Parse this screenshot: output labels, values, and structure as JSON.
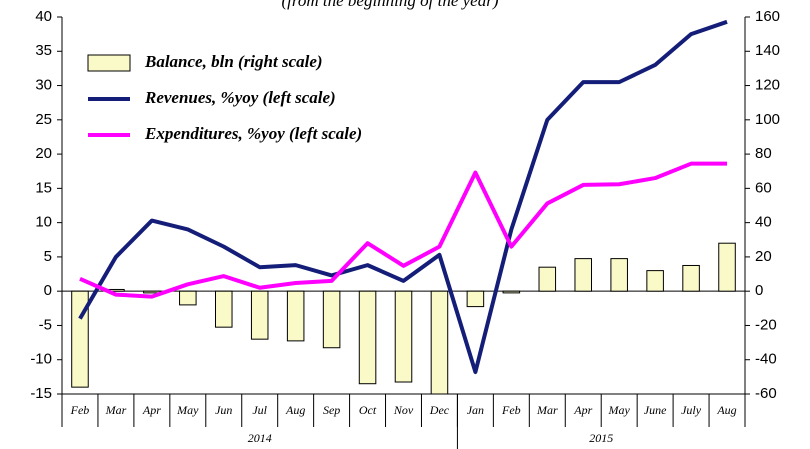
{
  "chart_data": {
    "type": "bar_line_combo",
    "subtitle": "(from the beginning of the year)",
    "categories": [
      "Feb",
      "Mar",
      "Apr",
      "May",
      "Jun",
      "Jul",
      "Aug",
      "Sep",
      "Oct",
      "Nov",
      "Dec",
      "Jan",
      "Feb",
      "Mar",
      "Apr",
      "May",
      "June",
      "July",
      "Aug"
    ],
    "groups": [
      {
        "label": "2014",
        "count": 11
      },
      {
        "label": "2015",
        "count": 8
      }
    ],
    "series": [
      {
        "name": "Balance, bln (right scale)",
        "kind": "bar",
        "axis": "y2",
        "color": "#fafac8",
        "values": [
          -56,
          1,
          -1,
          -8,
          -21,
          -28,
          -29,
          -33,
          -54,
          -53,
          -60,
          -9,
          -1,
          14,
          19,
          19,
          12,
          15,
          28
        ]
      },
      {
        "name": "Revenues, %yoy (left scale)",
        "kind": "line",
        "axis": "y",
        "color": "#141e78",
        "values": [
          -4,
          5,
          10.3,
          9,
          6.5,
          3.5,
          3.8,
          2.3,
          3.8,
          1.5,
          5.3,
          -11.8,
          9,
          25,
          30.5,
          30.5,
          33,
          37.5,
          39.3
        ]
      },
      {
        "name": "Expenditures, %yoy (left scale)",
        "kind": "line",
        "axis": "y",
        "color": "#ff00ff",
        "values": [
          1.8,
          -0.5,
          -0.8,
          1,
          2.2,
          0.5,
          1.2,
          1.5,
          7,
          3.7,
          6.5,
          17.3,
          6.5,
          12.8,
          15.5,
          15.6,
          16.5,
          18.6,
          18.6
        ]
      }
    ],
    "ylim": [
      -15,
      40
    ],
    "yticks": [
      -15,
      -10,
      -5,
      0,
      5,
      10,
      15,
      20,
      25,
      30,
      35,
      40
    ],
    "y2lim": [
      -60,
      160
    ],
    "y2ticks": [
      -60,
      -40,
      -20,
      0,
      20,
      40,
      60,
      80,
      100,
      120,
      140,
      160
    ],
    "legend": "upper left",
    "grid": false
  }
}
